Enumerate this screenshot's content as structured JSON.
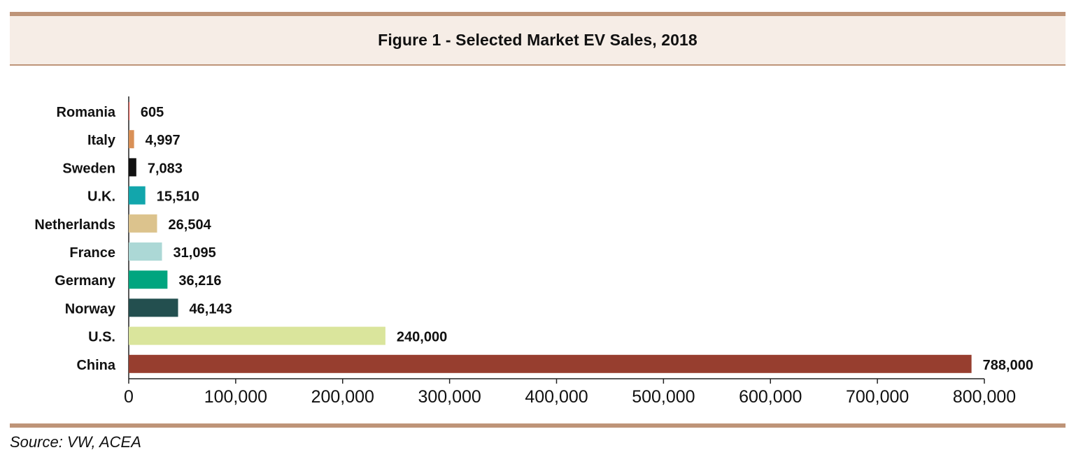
{
  "source": "Source: VW, ACEA",
  "chart_data": {
    "type": "bar",
    "orientation": "horizontal",
    "title": "Figure 1 - Selected Market EV Sales, 2018",
    "xlabel": "",
    "ylabel": "",
    "categories": [
      "Romania",
      "Italy",
      "Sweden",
      "U.K.",
      "Netherlands",
      "France",
      "Germany",
      "Norway",
      "U.S.",
      "China"
    ],
    "values": [
      605,
      4997,
      7083,
      15510,
      26504,
      31095,
      36216,
      46143,
      240000,
      788000
    ],
    "value_labels": [
      "605",
      "4,997",
      "7,083",
      "15,510",
      "26,504",
      "31,095",
      "36,216",
      "46,143",
      "240,000",
      "788,000"
    ],
    "bar_colors": [
      "#e6564f",
      "#d99057",
      "#111111",
      "#12a6ac",
      "#dcc38d",
      "#acd8d6",
      "#00a57f",
      "#234f4f",
      "#dae59c",
      "#973e2f"
    ],
    "xlim": [
      0,
      800000
    ],
    "xticks": [
      0,
      100000,
      200000,
      300000,
      400000,
      500000,
      600000,
      700000,
      800000
    ],
    "xtick_labels": [
      "0",
      "100,000",
      "200,000",
      "300,000",
      "400,000",
      "500,000",
      "600,000",
      "700,000",
      "800,000"
    ],
    "grid": false,
    "legend": "none"
  }
}
